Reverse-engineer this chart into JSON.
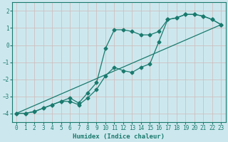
{
  "xlabel": "Humidex (Indice chaleur)",
  "ylabel": "",
  "bg_color": "#cce8ee",
  "grid_color": "#b8d8e0",
  "line_color": "#1a7a6e",
  "xlim": [
    -0.5,
    23.5
  ],
  "ylim": [
    -4.5,
    2.5
  ],
  "xticks": [
    0,
    1,
    2,
    3,
    4,
    5,
    6,
    7,
    8,
    9,
    10,
    11,
    12,
    13,
    14,
    15,
    16,
    17,
    18,
    19,
    20,
    21,
    22,
    23
  ],
  "yticks": [
    -4,
    -3,
    -2,
    -1,
    0,
    1,
    2
  ],
  "series1_x": [
    0,
    1,
    2,
    3,
    4,
    5,
    6,
    7,
    8,
    9,
    10,
    11,
    12,
    13,
    14,
    15,
    16,
    17,
    18,
    19,
    20,
    21,
    22,
    23
  ],
  "series1_y": [
    -4.0,
    -4.0,
    -3.9,
    -3.7,
    -3.5,
    -3.3,
    -3.3,
    -3.5,
    -3.1,
    -2.6,
    -1.8,
    -1.3,
    -1.5,
    -1.6,
    -1.3,
    -1.1,
    0.2,
    1.5,
    1.6,
    1.8,
    1.8,
    1.7,
    1.5,
    1.2
  ],
  "series2_x": [
    0,
    1,
    2,
    3,
    4,
    5,
    6,
    7,
    8,
    9,
    10,
    11,
    12,
    13,
    14,
    15,
    16,
    17,
    18,
    19,
    20,
    21,
    22,
    23
  ],
  "series2_y": [
    -4.0,
    -4.0,
    -3.9,
    -3.7,
    -3.5,
    -3.3,
    -3.1,
    -3.4,
    -2.8,
    -2.2,
    -0.2,
    0.9,
    0.9,
    0.8,
    0.6,
    0.6,
    0.8,
    1.5,
    1.6,
    1.8,
    1.8,
    1.7,
    1.5,
    1.2
  ],
  "trend_x": [
    0,
    23
  ],
  "trend_y": [
    -4.0,
    1.2
  ]
}
